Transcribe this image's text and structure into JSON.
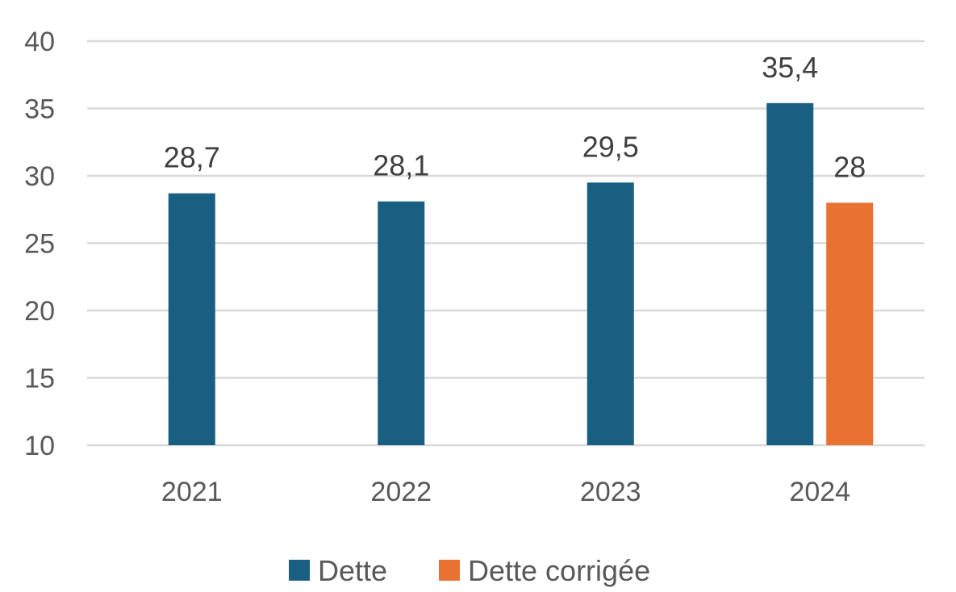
{
  "chart_data": {
    "type": "bar",
    "title": "",
    "xlabel": "",
    "ylabel": "",
    "categories": [
      "2021",
      "2022",
      "2023",
      "2024"
    ],
    "ylim": [
      10,
      40
    ],
    "yticks": [
      "10",
      "15",
      "20",
      "25",
      "30",
      "35",
      "40"
    ],
    "grid": true,
    "legend_position": "bottom",
    "series": [
      {
        "name": "Dette",
        "color": "#195f82",
        "values": [
          28.7,
          28.1,
          29.5,
          35.4
        ],
        "labels": [
          "28,7",
          "28,1",
          "29,5",
          "35,4"
        ]
      },
      {
        "name": "Dette corrigée",
        "color": "#e97132",
        "values": [
          null,
          null,
          null,
          28
        ],
        "labels": [
          null,
          null,
          null,
          "28"
        ]
      }
    ]
  }
}
